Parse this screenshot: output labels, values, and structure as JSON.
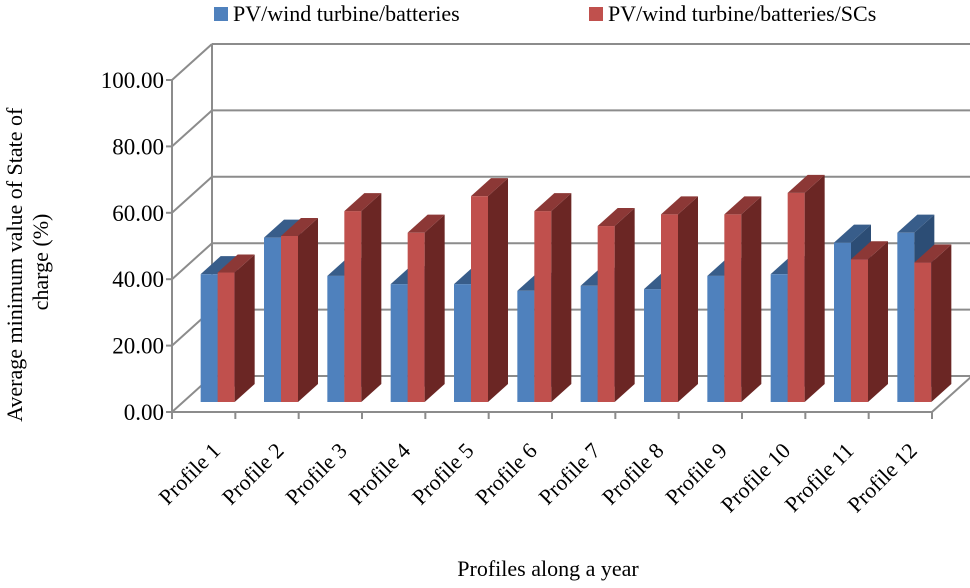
{
  "chart_data": {
    "type": "bar",
    "style": "3d-clustered",
    "title": "",
    "xlabel": "Profiles along a year",
    "ylabel": "Average minimum value of State of charge (%)",
    "ylabel_lines": [
      "Average minimum value of State of",
      "charge (%)"
    ],
    "ylim": [
      0,
      100
    ],
    "yticks": [
      "0.00",
      "20.00",
      "40.00",
      "60.00",
      "80.00",
      "100.00"
    ],
    "categories": [
      "Profile 1",
      "Profile 2",
      "Profile 3",
      "Profile 4",
      "Profile 5",
      "Profile 6",
      "Profile 7",
      "Profile 8",
      "Profile 9",
      "Profile 10",
      "Profile 11",
      "Profile 12"
    ],
    "series": [
      {
        "name": "PV/wind turbine/batteries",
        "color": "#4f81bd",
        "side_color": "#2c4d75",
        "top_color": "#385d8a",
        "values": [
          38.5,
          49.5,
          38,
          35.5,
          35.5,
          33.5,
          35,
          34,
          38,
          38.5,
          48,
          51
        ]
      },
      {
        "name": "PV/wind turbine/batteries/SCs",
        "color": "#c0504d",
        "side_color": "#6b2624",
        "top_color": "#8c3836",
        "values": [
          39,
          50,
          57.5,
          51,
          62,
          57.5,
          53,
          56.5,
          56.5,
          63,
          43,
          42
        ]
      }
    ],
    "legend_position": "top",
    "grid": true
  }
}
